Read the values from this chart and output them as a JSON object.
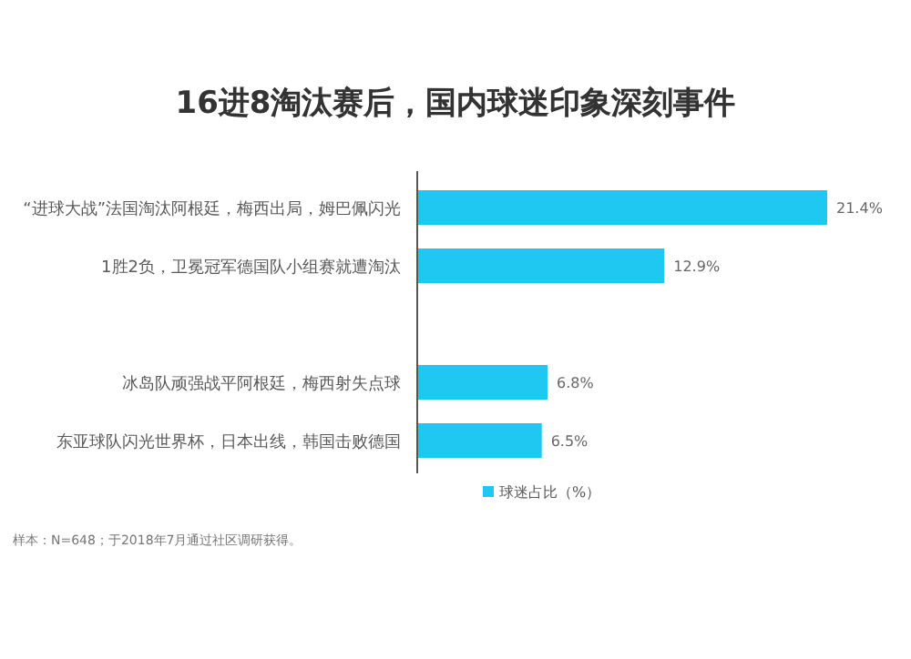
{
  "chart_data": {
    "type": "bar",
    "orientation": "horizontal",
    "title": "16进8淘汰赛后，国内球迷印象深刻事件",
    "categories": [
      "“进球大战”法国淘汰阿根廷，梅西出局，姆巴佩闪光",
      "1胜2负，卫冕冠军德国队小组赛就遭淘汰",
      null,
      "冰岛队顽强战平阿根廷，梅西射失点球",
      "东亚球队闪光世界杯，日本出线，韩国击败德国"
    ],
    "series": [
      {
        "name": "球迷占比（%）",
        "color": "#1ec8f0",
        "values": [
          21.4,
          12.9,
          null,
          6.8,
          6.5
        ],
        "value_labels": [
          "21.4%",
          "12.9%",
          null,
          "6.8%",
          "6.5%"
        ]
      }
    ],
    "legend": "bottom",
    "annotations": [
      "样本：N=648；于2018年7月通过社区调研获得。"
    ]
  }
}
